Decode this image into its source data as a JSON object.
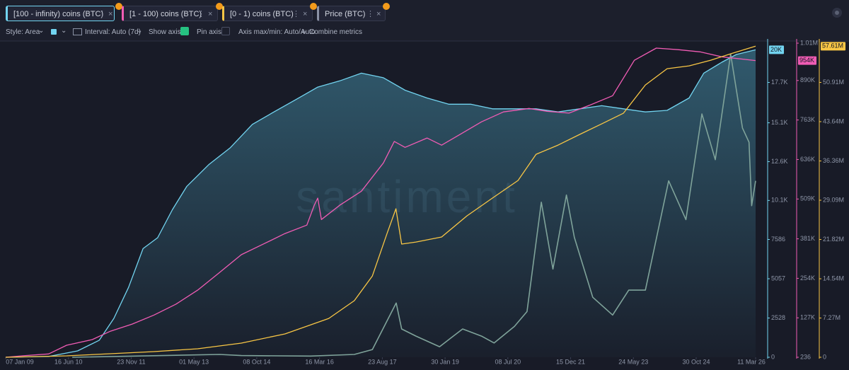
{
  "tabs": [
    {
      "label": "[100 - infinity) coins (BTC)"
    },
    {
      "label": "[1 - 100) coins (BTC)"
    },
    {
      "label": "[0 - 1) coins (BTC)"
    },
    {
      "label": "Price (BTC)"
    }
  ],
  "toolbar": {
    "style": "Style: Area",
    "interval": "Interval: Auto (7d)",
    "show_axis": "Show axis",
    "pin_axis": "Pin axis",
    "axis_minmax": "Axis max/min: Auto/Auto",
    "combine": "Combine metrics"
  },
  "watermark": "santiment",
  "chart_data": {
    "type": "area",
    "xlim": [
      "2009-01-07",
      "2026-03-11"
    ],
    "xticks": [
      {
        "value": "2009-01-07",
        "label": "07 Jan 09"
      },
      {
        "value": "2010-06-16",
        "label": "16 Jun 10"
      },
      {
        "value": "2011-11-23",
        "label": "23 Nov 11"
      },
      {
        "value": "2013-05-01",
        "label": "01 May 13"
      },
      {
        "value": "2014-10-08",
        "label": "08 Oct 14"
      },
      {
        "value": "2016-03-16",
        "label": "16 Mar 16"
      },
      {
        "value": "2017-08-23",
        "label": "23 Aug 17"
      },
      {
        "value": "2019-01-30",
        "label": "30 Jan 19"
      },
      {
        "value": "2020-07-08",
        "label": "08 Jul 20"
      },
      {
        "value": "2021-12-15",
        "label": "15 Dec 21"
      },
      {
        "value": "2023-05-24",
        "label": "24 May 23"
      },
      {
        "value": "2024-10-30",
        "label": "30 Oct 24"
      },
      {
        "value": "2026-03-11",
        "label": "11 Mar 26"
      }
    ],
    "ylim": [
      0,
      20230
    ],
    "yticks": [
      0,
      2528,
      5057,
      7586,
      {
        "value": 10100,
        "label": "10.1K"
      },
      {
        "value": 12600,
        "label": "12.6K"
      },
      {
        "value": 15100,
        "label": "15.1K"
      },
      {
        "value": 17700,
        "label": "17.7K"
      }
    ],
    "y2lim": [
      236,
      1010000
    ],
    "y2ticks": [
      236,
      {
        "value": 127000,
        "label": "127K"
      },
      {
        "value": 254000,
        "label": "254K"
      },
      {
        "value": 381000,
        "label": "381K"
      },
      {
        "value": 509000,
        "label": "509K"
      },
      {
        "value": 636000,
        "label": "636K"
      },
      {
        "value": 763000,
        "label": "763K"
      },
      {
        "value": 890000,
        "label": "890K"
      },
      {
        "value": 1010000,
        "label": "1.01M"
      }
    ],
    "y3lim": [
      0,
      58180000
    ],
    "y3ticks": [
      0,
      {
        "value": 7270000,
        "label": "7.27M"
      },
      {
        "value": 14540000,
        "label": "14.54M"
      },
      {
        "value": 21820000,
        "label": "21.82M"
      },
      {
        "value": 29090000,
        "label": "29.09M"
      },
      {
        "value": 36360000,
        "label": "36.36M"
      },
      {
        "value": 43640000,
        "label": "43.64M"
      },
      {
        "value": 50910000,
        "label": "50.91M"
      }
    ],
    "y4lim": [
      0,
      110000
    ],
    "series": [
      {
        "name": "[100 - infinity) coins (BTC)",
        "color": "#72d4f0",
        "axis": "y",
        "area": true,
        "x": [
          "2009-01-07",
          "2010-01-01",
          "2010-09-01",
          "2011-03-01",
          "2011-07-01",
          "2011-11-01",
          "2012-03-01",
          "2012-07-01",
          "2012-11-01",
          "2013-03-01",
          "2013-09-01",
          "2014-03-01",
          "2014-09-01",
          "2015-03-01",
          "2015-09-01",
          "2016-03-01",
          "2016-09-01",
          "2017-03-01",
          "2017-09-01",
          "2018-03-01",
          "2018-09-01",
          "2019-03-01",
          "2019-09-01",
          "2020-03-01",
          "2020-09-01",
          "2021-03-01",
          "2021-09-01",
          "2022-03-01",
          "2022-09-01",
          "2023-03-01",
          "2023-09-01",
          "2024-03-01",
          "2024-09-01",
          "2025-01-01",
          "2025-06-01",
          "2025-10-01",
          "2026-03-11"
        ],
        "values": [
          0,
          50,
          410,
          1100,
          2500,
          4500,
          7000,
          7700,
          9500,
          11000,
          12400,
          13500,
          15000,
          15800,
          16600,
          17400,
          17800,
          18300,
          18000,
          17200,
          16700,
          16300,
          16300,
          16000,
          16000,
          16000,
          15800,
          16000,
          16200,
          16000,
          15800,
          15900,
          16700,
          18300,
          19000,
          19500,
          19800
        ],
        "value_labels": [
          null,
          null,
          null,
          null,
          null,
          null,
          null,
          null,
          null,
          null,
          null,
          null,
          null,
          null,
          null,
          null,
          null,
          null,
          null,
          null,
          null,
          null,
          null,
          null,
          null,
          null,
          null,
          null,
          null,
          null,
          null,
          null,
          null,
          null,
          null,
          null,
          "20K"
        ]
      },
      {
        "name": "Price (BTC)",
        "color": "#7fa39a",
        "axis": "y4",
        "x": [
          "2010-07-18",
          "2013-12-01",
          "2014-06-01",
          "2016-01-01",
          "2017-01-01",
          "2017-06-01",
          "2017-12-17",
          "2018-02-01",
          "2018-06-01",
          "2018-12-15",
          "2019-06-26",
          "2019-12-01",
          "2020-03-15",
          "2020-09-01",
          "2020-12-15",
          "2021-04-14",
          "2021-07-20",
          "2021-11-10",
          "2022-01-15",
          "2022-06-18",
          "2022-12-01",
          "2023-04-15",
          "2023-09-01",
          "2024-03-14",
          "2024-08-05",
          "2024-12-17",
          "2025-04-08",
          "2025-08-14",
          "2025-11-21",
          "2026-01-15",
          "2026-02-06",
          "2026-03-11"
        ],
        "values": [
          0.05,
          1000,
          600,
          430,
          1000,
          2700,
          19000,
          9900,
          7400,
          3700,
          9900,
          7400,
          5000,
          10800,
          16000,
          54300,
          30900,
          56800,
          42000,
          21000,
          14800,
          23500,
          23500,
          61800,
          48200,
          85200,
          69200,
          106200,
          80300,
          75300,
          53100,
          61800
        ]
      },
      {
        "name": "[1 - 100) coins (BTC)",
        "color": "#f05cb4",
        "axis": "y2",
        "x": [
          "2009-01-07",
          "2009-06-01",
          "2010-01-01",
          "2010-06-01",
          "2011-01-01",
          "2011-06-01",
          "2011-12-01",
          "2012-06-01",
          "2012-12-01",
          "2013-06-01",
          "2013-12-01",
          "2014-06-01",
          "2014-12-01",
          "2015-06-01",
          "2015-12-01",
          "2016-02-01",
          "2016-03-01",
          "2016-04-01",
          "2016-09-01",
          "2017-03-01",
          "2017-09-01",
          "2017-12-01",
          "2018-03-01",
          "2018-09-01",
          "2019-01-01",
          "2019-06-01",
          "2019-12-01",
          "2020-06-01",
          "2021-01-01",
          "2021-06-01",
          "2021-12-01",
          "2022-06-01",
          "2022-12-01",
          "2023-06-01",
          "2023-12-01",
          "2024-06-01",
          "2024-12-01",
          "2025-06-01",
          "2026-03-11"
        ],
        "values": [
          300,
          5000,
          11000,
          39000,
          57000,
          84000,
          107000,
          136000,
          171000,
          216000,
          273000,
          330000,
          364000,
          398000,
          425000,
          489000,
          512000,
          443000,
          489000,
          534000,
          625000,
          694000,
          675000,
          705000,
          682000,
          716000,
          757000,
          789000,
          800000,
          791000,
          785000,
          812000,
          841000,
          955000,
          994000,
          989000,
          982000,
          966000,
          954000
        ],
        "value_labels": [
          null,
          null,
          null,
          null,
          null,
          null,
          null,
          null,
          null,
          null,
          null,
          null,
          null,
          null,
          null,
          null,
          null,
          null,
          null,
          null,
          null,
          null,
          null,
          null,
          null,
          null,
          null,
          null,
          null,
          null,
          null,
          null,
          null,
          null,
          null,
          null,
          null,
          null,
          "954K"
        ]
      },
      {
        "name": "[0 - 1) coins (BTC)",
        "color": "#f8c645",
        "axis": "y3",
        "x": [
          "2009-01-07",
          "2010-06-01",
          "2011-06-01",
          "2012-06-01",
          "2013-06-01",
          "2014-06-01",
          "2015-06-01",
          "2016-06-01",
          "2017-01-01",
          "2017-06-01",
          "2017-10-01",
          "2017-12-15",
          "2018-02-01",
          "2018-06-01",
          "2019-01-01",
          "2019-08-01",
          "2020-03-01",
          "2020-10-01",
          "2021-03-01",
          "2021-09-01",
          "2022-03-01",
          "2022-09-01",
          "2023-03-01",
          "2023-09-01",
          "2024-03-01",
          "2024-09-01",
          "2025-03-01",
          "2025-09-01",
          "2026-03-11"
        ],
        "values": [
          0,
          260000,
          655000,
          1050000,
          1570000,
          2620000,
          4320000,
          7200000,
          10480000,
          15060000,
          22900000,
          27500000,
          20960000,
          21350000,
          22270000,
          26200000,
          29480000,
          32750000,
          37600000,
          39300000,
          41270000,
          43230000,
          45200000,
          50440000,
          53450000,
          53970000,
          55020000,
          56330000,
          57610000
        ],
        "value_labels": [
          null,
          null,
          null,
          null,
          null,
          null,
          null,
          null,
          null,
          null,
          null,
          null,
          null,
          null,
          null,
          null,
          null,
          null,
          null,
          null,
          null,
          null,
          null,
          null,
          null,
          null,
          null,
          null,
          "57.61M"
        ]
      }
    ]
  }
}
